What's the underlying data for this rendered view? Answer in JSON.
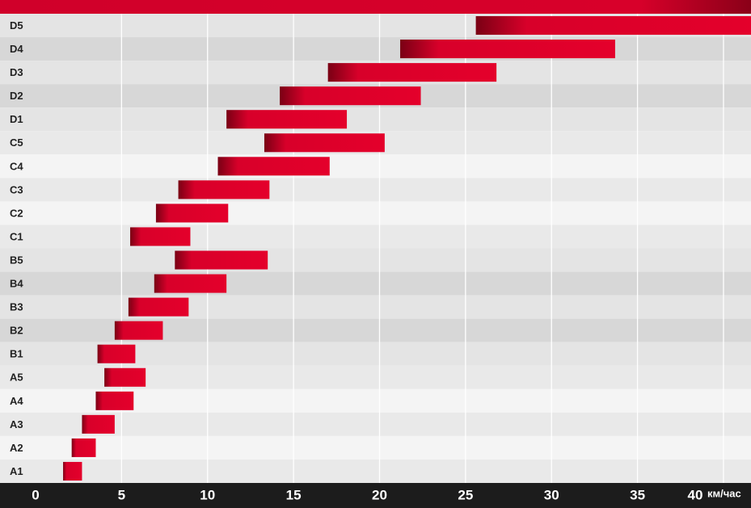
{
  "chart_data": {
    "type": "range_bar",
    "categories": [
      "D5",
      "D4",
      "D3",
      "D2",
      "D1",
      "C5",
      "C4",
      "C3",
      "C2",
      "C1",
      "B5",
      "B4",
      "B3",
      "B2",
      "B1",
      "A5",
      "A4",
      "A3",
      "A2",
      "A1"
    ],
    "values": [
      [
        25.6,
        42
      ],
      [
        21.2,
        33.7
      ],
      [
        17.0,
        26.8
      ],
      [
        14.2,
        22.4
      ],
      [
        11.1,
        18.1
      ],
      [
        13.3,
        20.3
      ],
      [
        10.6,
        17.1
      ],
      [
        8.3,
        13.6
      ],
      [
        7.0,
        11.2
      ],
      [
        5.5,
        9.0
      ],
      [
        8.1,
        13.5
      ],
      [
        6.9,
        11.1
      ],
      [
        5.4,
        8.9
      ],
      [
        4.6,
        7.4
      ],
      [
        3.6,
        5.8
      ],
      [
        4.0,
        6.4
      ],
      [
        3.5,
        5.7
      ],
      [
        2.7,
        4.6
      ],
      [
        2.1,
        3.5
      ],
      [
        1.6,
        2.7
      ]
    ],
    "color": "#e2002a",
    "x_label": "км/час",
    "xlim": [
      0,
      41.6
    ],
    "xticks": [
      0,
      5,
      10,
      15,
      20,
      25,
      30,
      35,
      40
    ],
    "grid": true
  }
}
